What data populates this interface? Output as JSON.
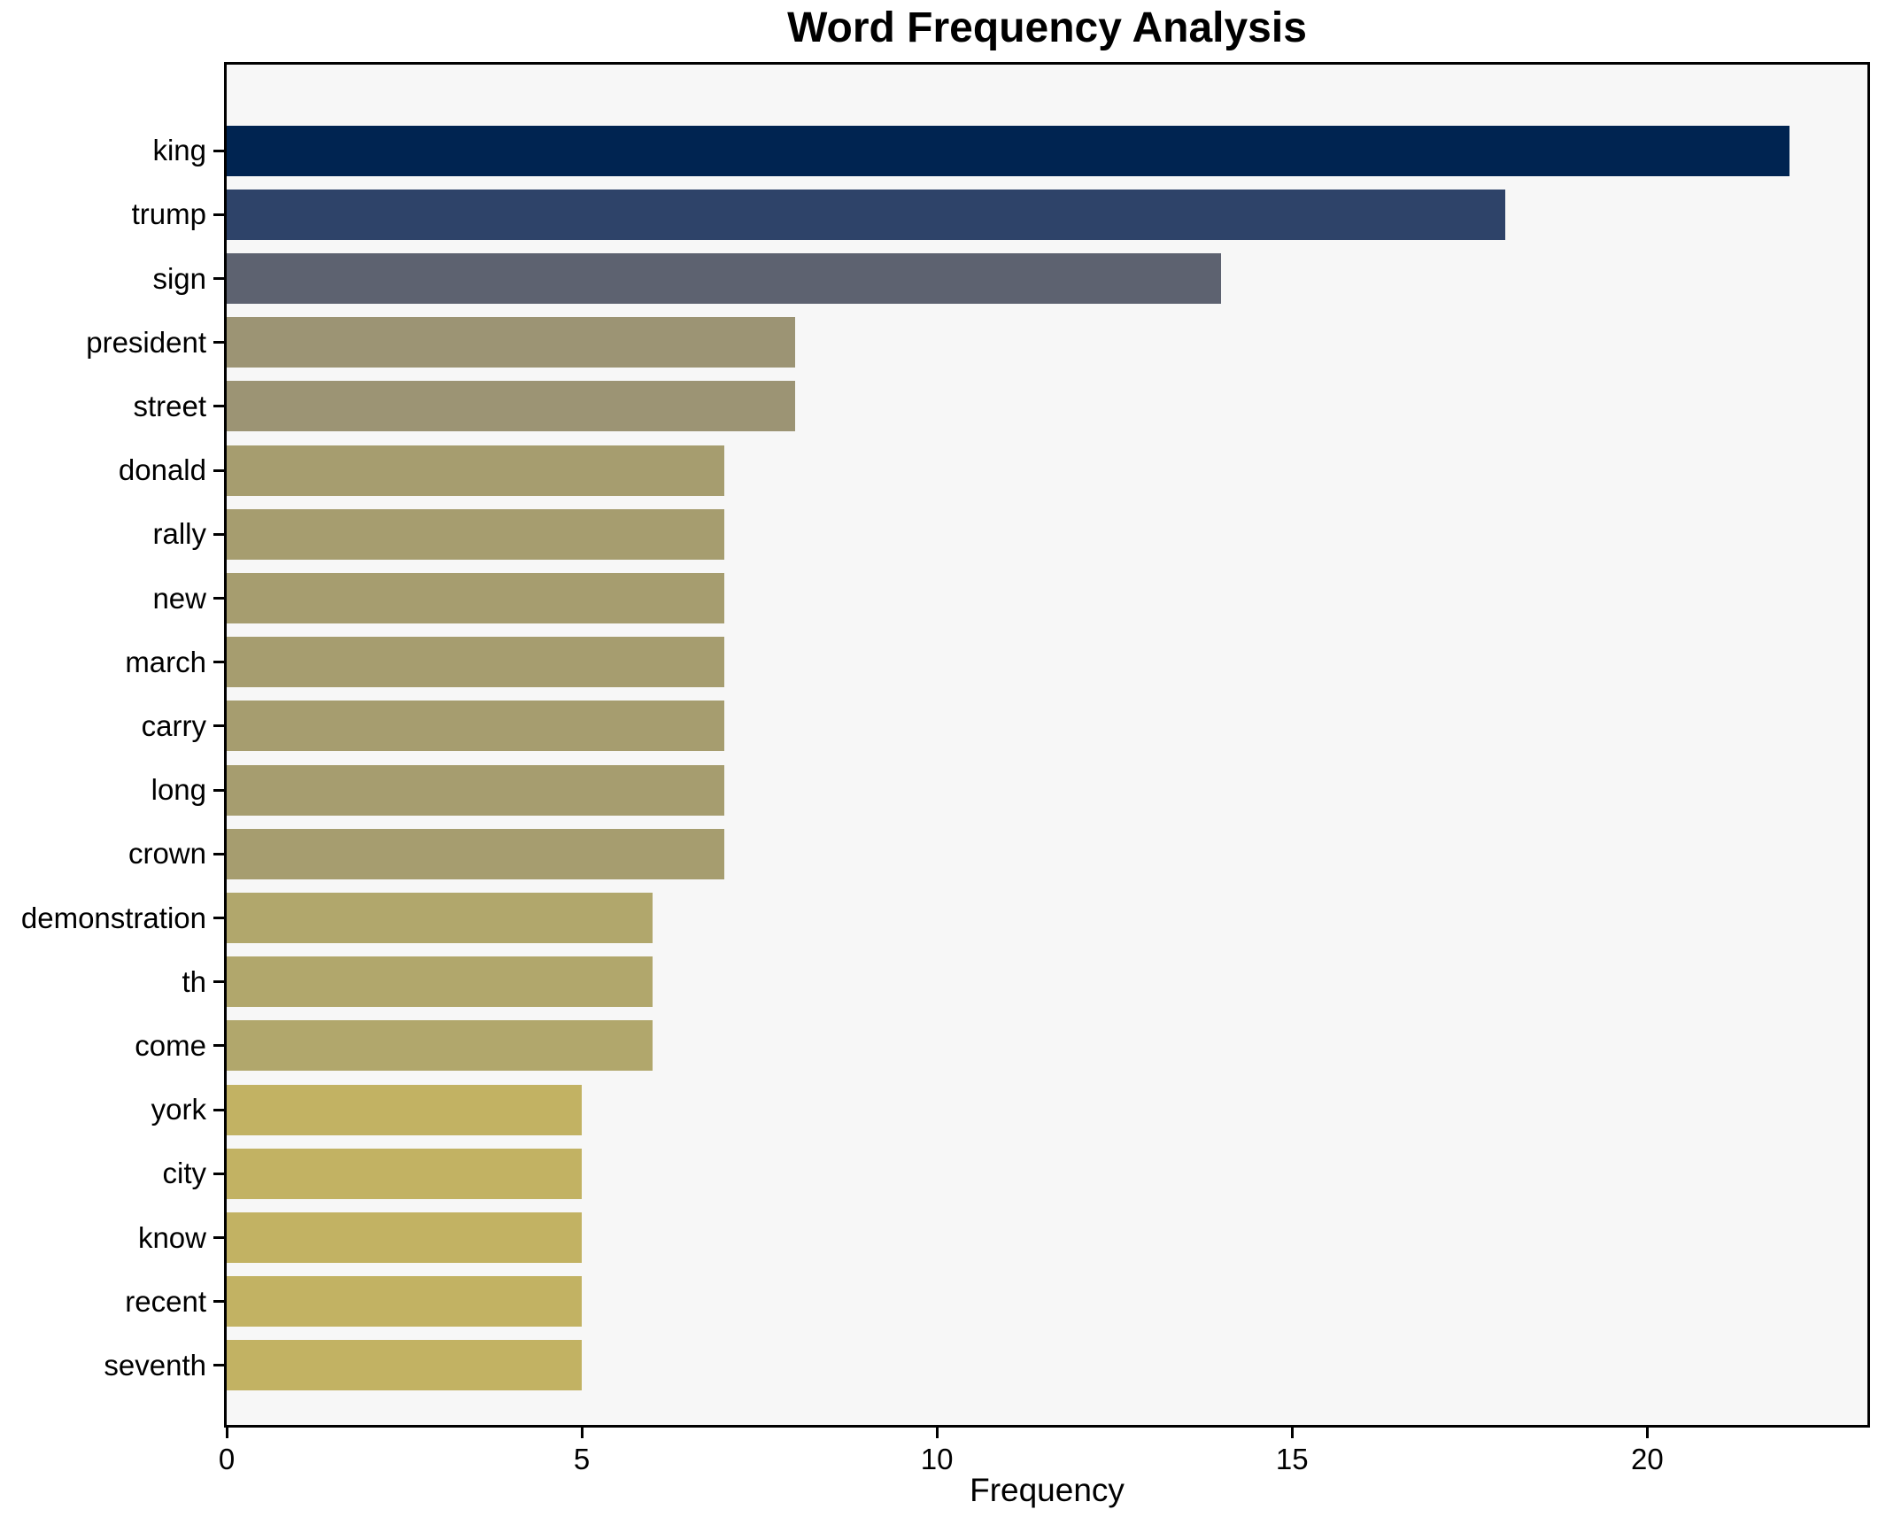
{
  "chart_data": {
    "type": "bar",
    "orientation": "horizontal",
    "title": "Word Frequency Analysis",
    "xlabel": "Frequency",
    "ylabel": "",
    "categories": [
      "king",
      "trump",
      "sign",
      "president",
      "street",
      "donald",
      "rally",
      "new",
      "march",
      "carry",
      "long",
      "crown",
      "demonstration",
      "th",
      "come",
      "york",
      "city",
      "know",
      "recent",
      "seventh"
    ],
    "values": [
      22,
      18,
      14,
      8,
      8,
      7,
      7,
      7,
      7,
      7,
      7,
      7,
      6,
      6,
      6,
      5,
      5,
      5,
      5,
      5
    ],
    "bar_colors": [
      "#002451",
      "#2e4369",
      "#5d6270",
      "#9c9474",
      "#9c9474",
      "#a69d6f",
      "#a69d6f",
      "#a69d6f",
      "#a69d6f",
      "#a69d6f",
      "#a69d6f",
      "#a69d6f",
      "#b1a76c",
      "#b1a76c",
      "#b1a76c",
      "#c2b263",
      "#c2b263",
      "#c2b263",
      "#c2b263",
      "#c2b263"
    ],
    "xlim": [
      0,
      23.1
    ],
    "xticks": [
      0,
      5,
      10,
      15,
      20
    ],
    "grid": false,
    "legend_position": "none",
    "plot_bg": "#f7f7f7",
    "fig_bg": "#ffffff",
    "spine_color": "#000000"
  }
}
